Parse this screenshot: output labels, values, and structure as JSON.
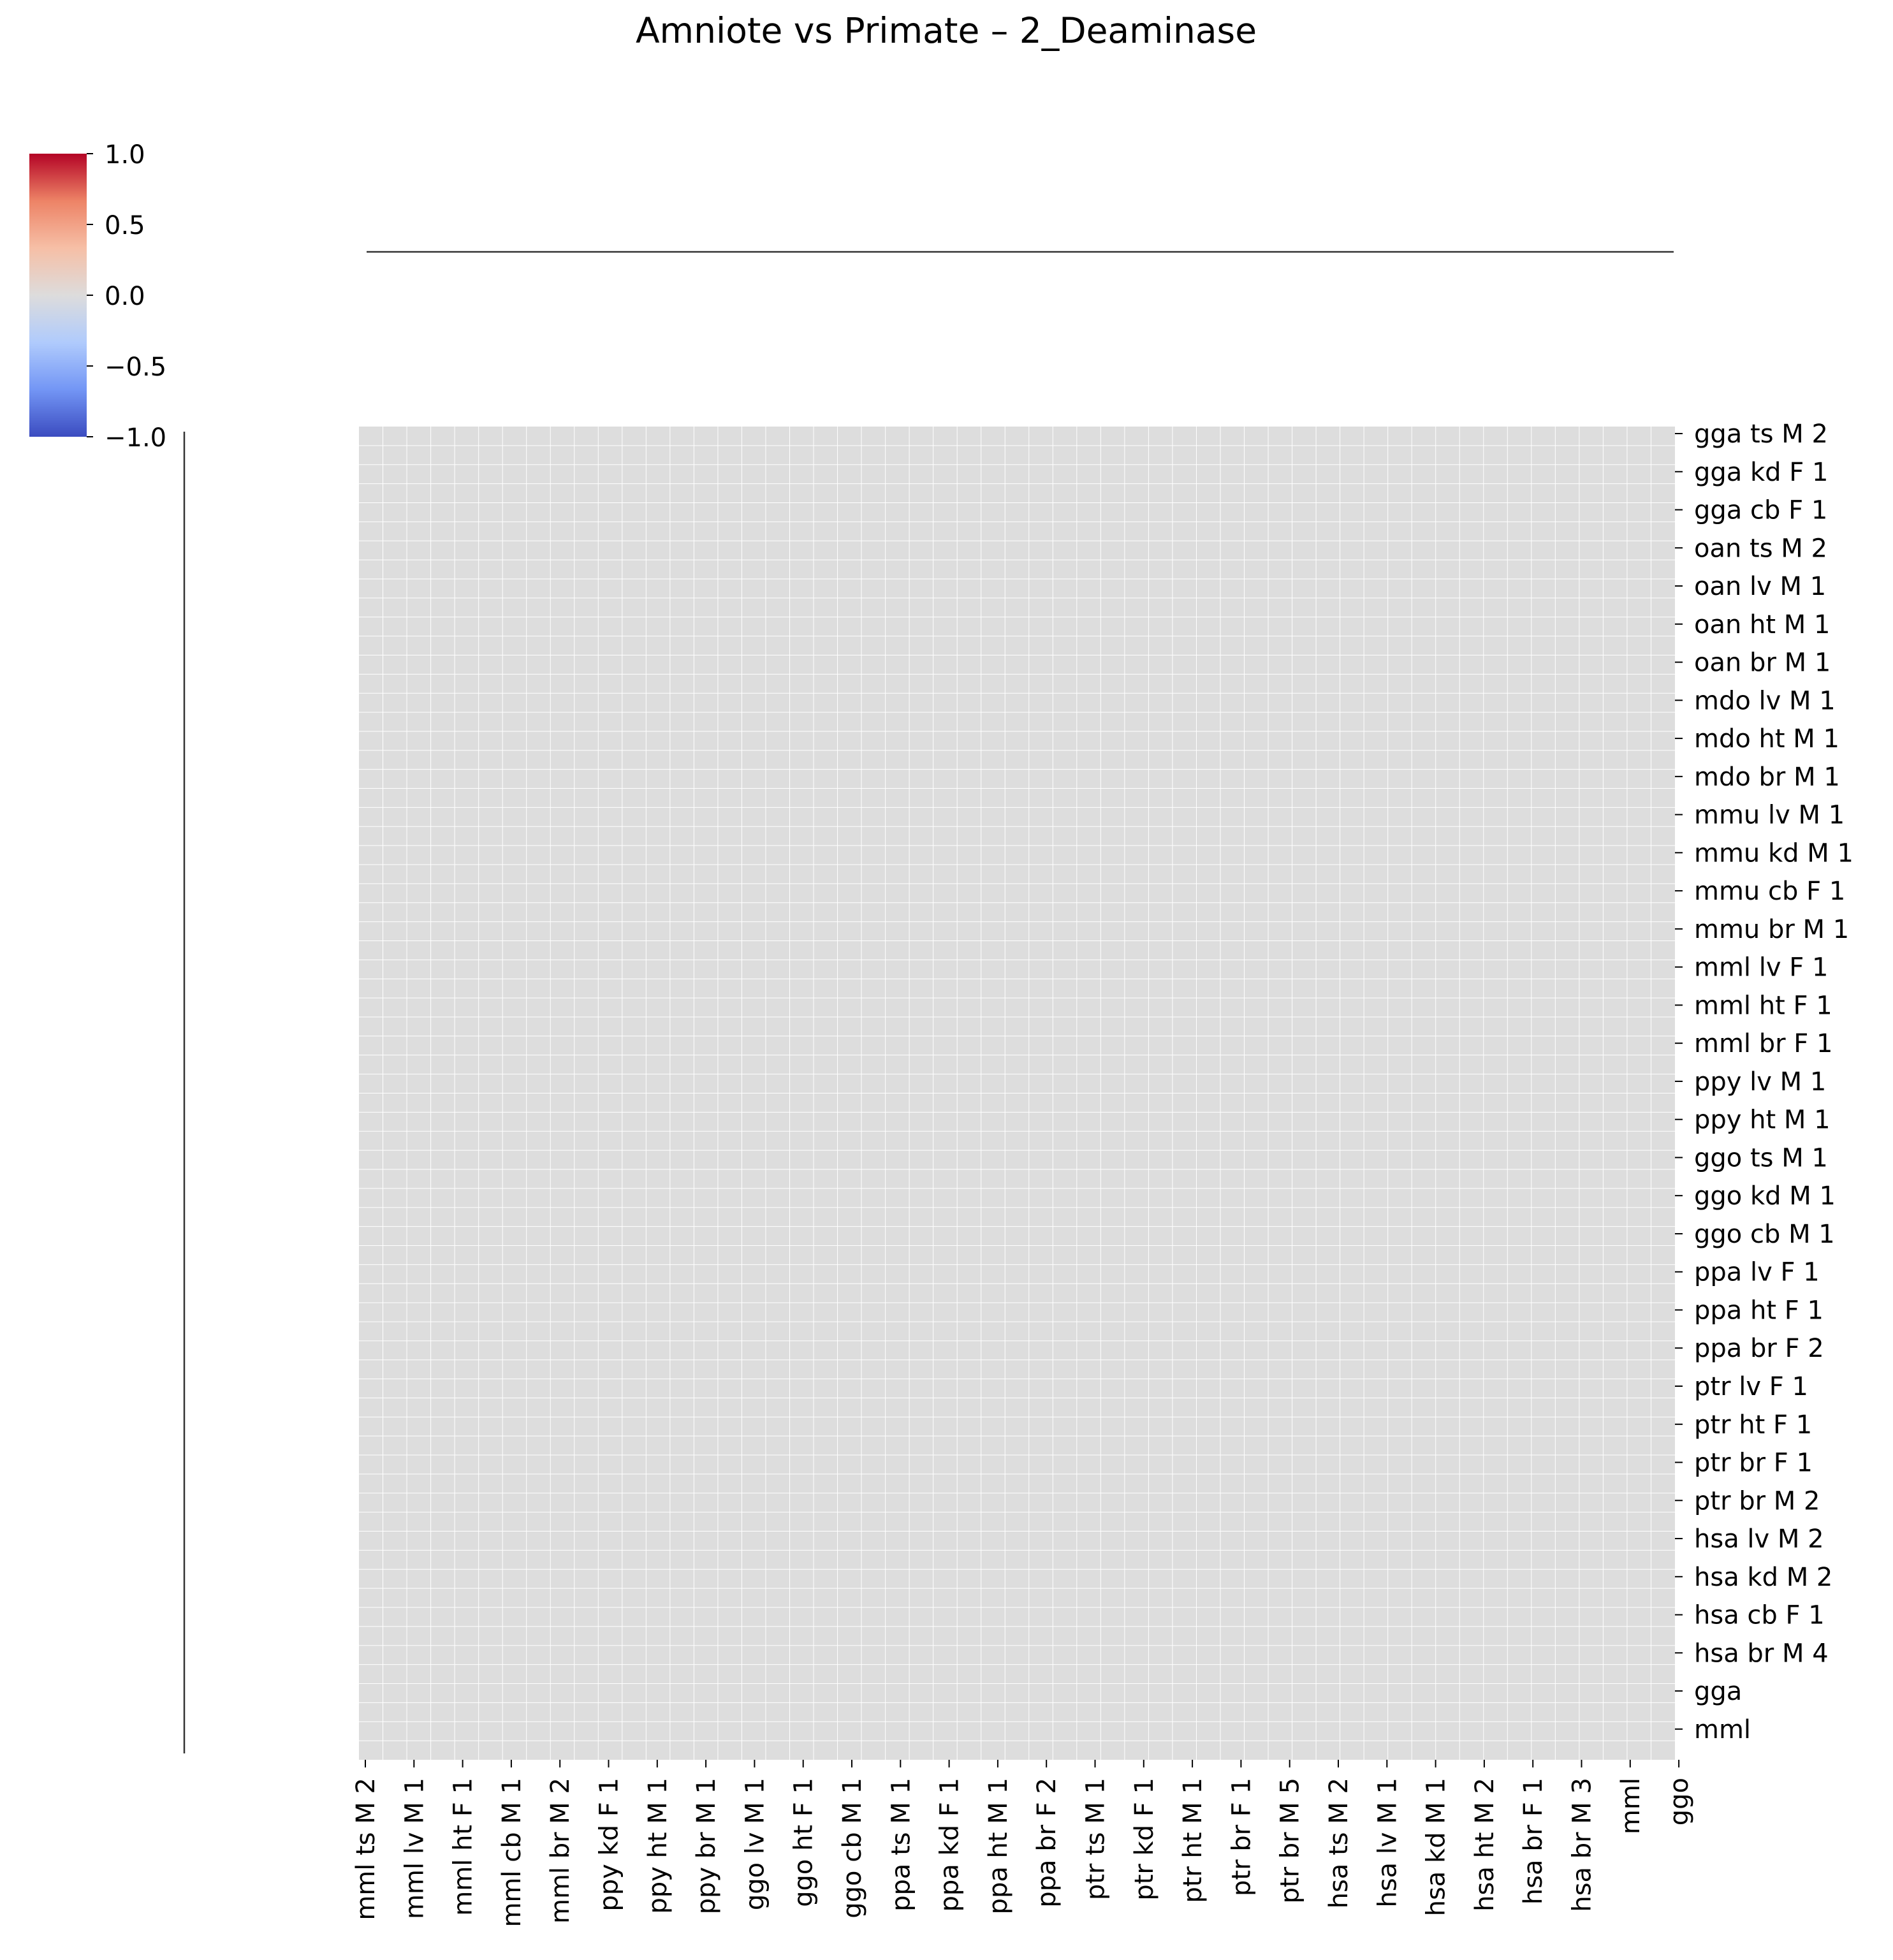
{
  "chart_data": {
    "type": "heatmap",
    "title": "Amniote vs Primate – 2_Deaminase",
    "colormap": "coolwarm",
    "colorbar": {
      "min": -1.0,
      "max": 1.0,
      "ticks": [
        1.0,
        0.5,
        0.0,
        -0.5,
        -1.0
      ],
      "tick_labels": [
        "1.0",
        "0.5",
        "0.0",
        "−0.5",
        "−1.0"
      ],
      "colors": [
        "#3b4cc0",
        "#7396f5",
        "#b0cbfc",
        "#dddcdc",
        "#f6bfa6",
        "#ed8366",
        "#b40426"
      ]
    },
    "x_tick_labels": [
      "mml ts M 2",
      "mml lv M 1",
      "mml ht F 1",
      "mml cb M 1",
      "mml br M 2",
      "ppy kd F 1",
      "ppy ht M 1",
      "ppy br M 1",
      "ggo lv M 1",
      "ggo ht F 1",
      "ggo cb M 1",
      "ppa ts M 1",
      "ppa kd F 1",
      "ppa ht M 1",
      "ppa br F 2",
      "ptr ts M 1",
      "ptr kd F 1",
      "ptr ht M 1",
      "ptr br F 1",
      "ptr br M 5",
      "hsa ts M 2",
      "hsa lv M 1",
      "hsa kd M 1",
      "hsa ht M 2",
      "hsa br F 1",
      "hsa br M 3",
      "mml",
      "ggo"
    ],
    "y_tick_labels": [
      "gga ts M 2",
      "gga kd F 1",
      "gga cb F 1",
      "oan ts M 2",
      "oan lv M 1",
      "oan ht M 1",
      "oan br M 1",
      "mdo lv M 1",
      "mdo ht M 1",
      "mdo br M 1",
      "mmu lv M 1",
      "mmu kd M 1",
      "mmu cb F 1",
      "mmu br M 1",
      "mml lv F 1",
      "mml ht F 1",
      "mml br F 1",
      "ppy lv M 1",
      "ppy ht M 1",
      "ggo ts M 1",
      "ggo kd M 1",
      "ggo cb M 1",
      "ppa lv F 1",
      "ppa ht F 1",
      "ppa br F 2",
      "ptr lv F 1",
      "ptr ht F 1",
      "ptr br F 1",
      "ptr br M 2",
      "hsa lv M 2",
      "hsa kd M 2",
      "hsa cb F 1",
      "hsa br M 4",
      "gga",
      "mml"
    ],
    "n_columns": 55,
    "n_rows": 70,
    "cell_value": 0.0,
    "cell_color": "#dddddd",
    "grid": true,
    "grid_color": "#ffffff",
    "dendrograms": [
      "top",
      "left"
    ]
  }
}
